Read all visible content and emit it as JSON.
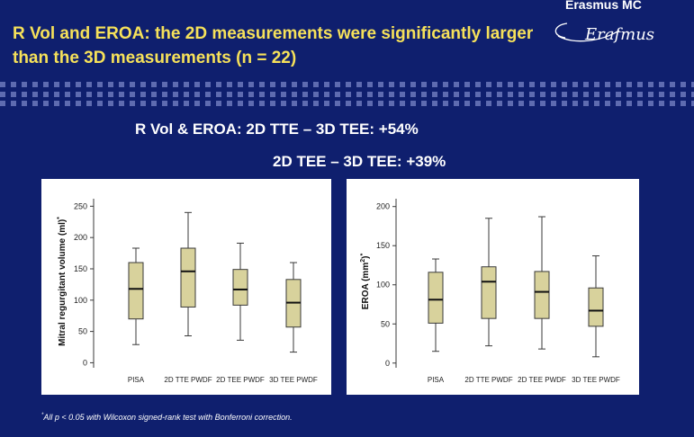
{
  "header": {
    "title": "R Vol and EROA: the 2D measurements were significantly larger than the 3D measurements (n = 22)",
    "logo_name": "Erasmus MC",
    "logo_script": "Erafmus"
  },
  "subtitles": {
    "line1": "R Vol & EROA:   2D TTE – 3D TEE: +54%",
    "line2": "2D TEE – 3D TEE: +39%"
  },
  "footnote": {
    "marker": "*",
    "text": "All p < 0.05 with Wilcoxon signed-rank test with Bonferroni correction."
  },
  "colors": {
    "background": "#0f1f6e",
    "title": "#f6e15a",
    "box_fill": "#d8d29c",
    "box_stroke": "#3a3a3a",
    "panel": "#ffffff"
  },
  "chart_data": [
    {
      "type": "boxplot",
      "title": "",
      "ylabel_main": "Mitral regurgitant volume (ml)",
      "ylabel_sup": "*",
      "xlabel": "",
      "ylim": [
        -8,
        262
      ],
      "yticks": [
        0,
        50,
        100,
        150,
        200,
        250
      ],
      "categories": [
        "PISA",
        "2D TTE PWDF",
        "2D TEE PWDF",
        "3D TEE PWDF"
      ],
      "boxes": [
        {
          "min": 29,
          "q1": 70,
          "median": 118,
          "q3": 160,
          "max": 183
        },
        {
          "min": 43,
          "q1": 89,
          "median": 146,
          "q3": 183,
          "max": 240
        },
        {
          "min": 36,
          "q1": 92,
          "median": 117,
          "q3": 149,
          "max": 191
        },
        {
          "min": 17,
          "q1": 57,
          "median": 96,
          "q3": 133,
          "max": 160
        }
      ]
    },
    {
      "type": "boxplot",
      "title": "",
      "ylabel_main": "EROA (mm",
      "ylabel_sup": "2",
      "ylabel_tail": ")",
      "ylabel_sup2": "*",
      "xlabel": "",
      "ylim": [
        -6,
        210
      ],
      "yticks": [
        0,
        50,
        100,
        150,
        200
      ],
      "categories": [
        "PISA",
        "2D TTE PWDF",
        "2D TEE PWDF",
        "3D TEE PWDF"
      ],
      "boxes": [
        {
          "min": 15,
          "q1": 51,
          "median": 81,
          "q3": 116,
          "max": 133
        },
        {
          "min": 22,
          "q1": 57,
          "median": 104,
          "q3": 123,
          "max": 185
        },
        {
          "min": 18,
          "q1": 57,
          "median": 91,
          "q3": 117,
          "max": 187
        },
        {
          "min": 8,
          "q1": 47,
          "median": 67,
          "q3": 96,
          "max": 137
        }
      ]
    }
  ]
}
